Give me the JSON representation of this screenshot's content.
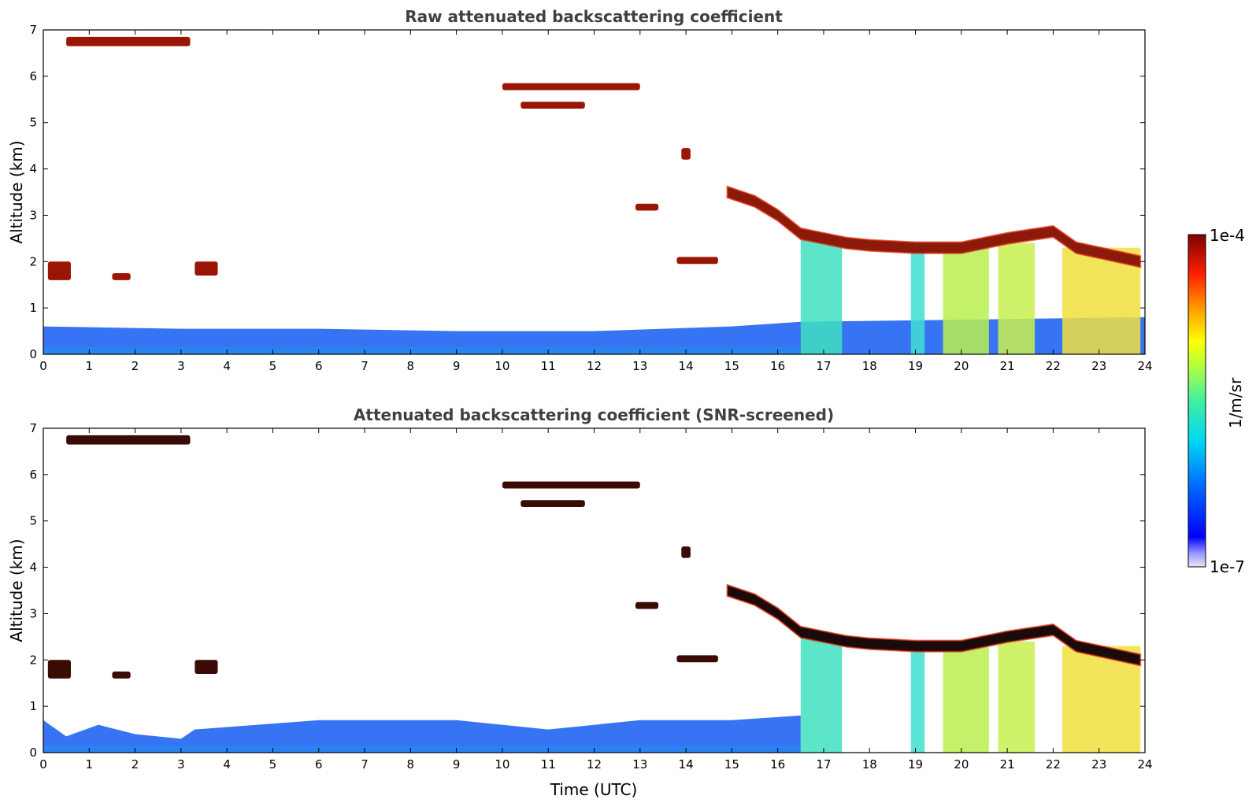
{
  "chart_data": [
    {
      "type": "heatmap",
      "title": "Raw attenuated backscattering coefficient",
      "xlabel": "",
      "ylabel": "Altitude (km)",
      "xlim": [
        0,
        24
      ],
      "ylim": [
        0,
        7
      ],
      "xticks": [
        "0",
        "1",
        "2",
        "3",
        "4",
        "5",
        "6",
        "7",
        "8",
        "9",
        "10",
        "11",
        "12",
        "13",
        "14",
        "15",
        "16",
        "17",
        "18",
        "19",
        "20",
        "21",
        "22",
        "23",
        "24"
      ],
      "yticks": [
        "0",
        "1",
        "2",
        "3",
        "4",
        "5",
        "6",
        "7"
      ],
      "snr_screened": false,
      "features": {
        "boundary_layer_top_km": [
          [
            0,
            0.6
          ],
          [
            3,
            0.55
          ],
          [
            6,
            0.55
          ],
          [
            9,
            0.5
          ],
          [
            12,
            0.5
          ],
          [
            15,
            0.6
          ],
          [
            16.5,
            0.7
          ],
          [
            24,
            0.8
          ]
        ],
        "cloud_layers": [
          {
            "t": [
              0.5,
              3.2
            ],
            "alt": [
              6.6,
              6.9
            ]
          },
          {
            "t": [
              10.0,
              13.0
            ],
            "alt": [
              5.3,
              5.9
            ]
          },
          {
            "t": [
              13.9,
              14.1
            ],
            "alt": [
              4.2,
              4.5
            ]
          },
          {
            "t": [
              12.9,
              13.4
            ],
            "alt": [
              3.1,
              3.25
            ]
          },
          {
            "t": [
              14.9,
              16.5
            ],
            "alt": [
              2.6,
              3.5
            ]
          },
          {
            "t": [
              16.5,
              23.9
            ],
            "alt": [
              1.9,
              2.8
            ]
          },
          {
            "t": [
              13.8,
              14.7
            ],
            "alt": [
              1.9,
              2.1
            ]
          }
        ]
      }
    },
    {
      "type": "heatmap",
      "title": "Attenuated backscattering coefficient (SNR-screened)",
      "xlabel": "Time (UTC)",
      "ylabel": "Altitude (km)",
      "xlim": [
        0,
        24
      ],
      "ylim": [
        0,
        7
      ],
      "xticks": [
        "0",
        "1",
        "2",
        "3",
        "4",
        "5",
        "6",
        "7",
        "8",
        "9",
        "10",
        "11",
        "12",
        "13",
        "14",
        "15",
        "16",
        "17",
        "18",
        "19",
        "20",
        "21",
        "22",
        "23",
        "24"
      ],
      "yticks": [
        "0",
        "1",
        "2",
        "3",
        "4",
        "5",
        "6",
        "7"
      ],
      "snr_screened": true,
      "features": {
        "boundary_layer_top_km": [
          [
            0,
            0.7
          ],
          [
            0.5,
            0.35
          ],
          [
            1.2,
            0.6
          ],
          [
            2,
            0.4
          ],
          [
            3,
            0.3
          ],
          [
            3.3,
            0.5
          ],
          [
            6,
            0.7
          ],
          [
            9,
            0.7
          ],
          [
            10,
            0.6
          ],
          [
            11,
            0.5
          ],
          [
            13,
            0.7
          ],
          [
            15,
            0.7
          ],
          [
            16.5,
            0.8
          ]
        ]
      }
    }
  ],
  "colorbar": {
    "label": "1/m/sr",
    "max_label": "1e-4",
    "min_label": "1e-7",
    "scale": "log",
    "colormap": [
      "#e8e8f8",
      "#0000ff",
      "#0080ff",
      "#00e0e0",
      "#80ff80",
      "#ffff00",
      "#ff8000",
      "#ff0000",
      "#800000"
    ]
  }
}
